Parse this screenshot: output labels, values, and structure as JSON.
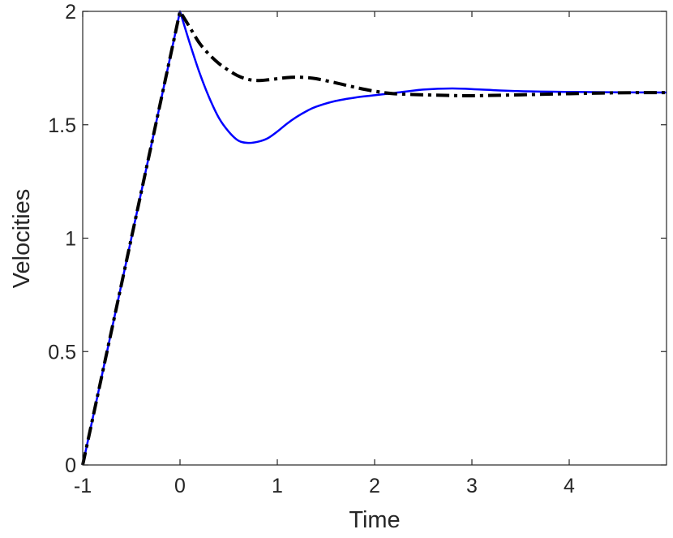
{
  "chart_data": {
    "type": "line",
    "title": "",
    "xlabel": "Time",
    "ylabel": "Velocities",
    "xlim": [
      -1,
      5
    ],
    "ylim": [
      0,
      2
    ],
    "xticks": [
      -1,
      0,
      1,
      2,
      3,
      4
    ],
    "xtick_labels": [
      "-1",
      "0",
      "1",
      "2",
      "3",
      "4"
    ],
    "yticks": [
      0,
      0.5,
      1,
      1.5,
      2
    ],
    "ytick_labels": [
      "0",
      "0.5",
      "1",
      "1.5",
      "2"
    ],
    "grid": false,
    "legend": "none",
    "series": [
      {
        "color": "#0000ff",
        "style": "solid",
        "x": [
          -1,
          0,
          0.1,
          0.2,
          0.3,
          0.4,
          0.5,
          0.6,
          0.7,
          0.8,
          0.9,
          1.0,
          1.1,
          1.2,
          1.3,
          1.4,
          1.6,
          1.8,
          2.0,
          2.2,
          2.5,
          2.8,
          3.1,
          3.5,
          4.0,
          4.5,
          5.0
        ],
        "y": [
          0,
          2.0,
          1.86,
          1.73,
          1.62,
          1.53,
          1.47,
          1.43,
          1.42,
          1.425,
          1.44,
          1.47,
          1.505,
          1.535,
          1.56,
          1.58,
          1.605,
          1.62,
          1.63,
          1.64,
          1.655,
          1.66,
          1.655,
          1.648,
          1.645,
          1.643,
          1.642
        ]
      },
      {
        "color": "#000000",
        "style": "dashdot",
        "x": [
          -1,
          0,
          0.1,
          0.2,
          0.3,
          0.4,
          0.5,
          0.6,
          0.7,
          0.8,
          0.9,
          1.0,
          1.1,
          1.2,
          1.3,
          1.4,
          1.6,
          1.8,
          2.0,
          2.2,
          2.5,
          2.8,
          3.0,
          3.5,
          4.0,
          4.5,
          5.0
        ],
        "y": [
          0,
          2.0,
          1.93,
          1.86,
          1.81,
          1.77,
          1.74,
          1.715,
          1.7,
          1.695,
          1.698,
          1.703,
          1.708,
          1.71,
          1.708,
          1.703,
          1.685,
          1.665,
          1.648,
          1.637,
          1.632,
          1.629,
          1.628,
          1.632,
          1.637,
          1.641,
          1.642
        ]
      }
    ]
  }
}
